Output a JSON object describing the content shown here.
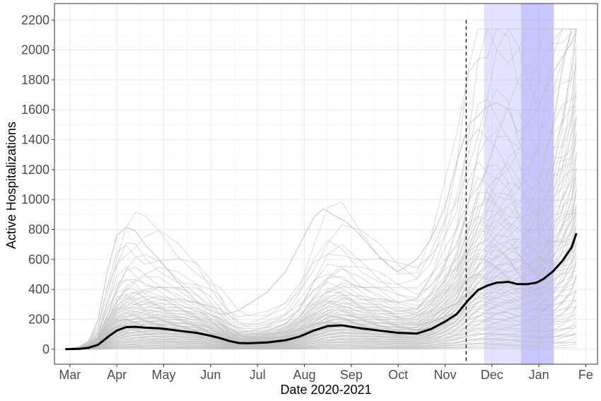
{
  "chart_data": {
    "type": "line",
    "title": "",
    "xlabel": "Date  2020-2021",
    "ylabel": "Active Hospitalizations",
    "x_tick_labels": [
      "Mar",
      "Apr",
      "May",
      "Jun",
      "Jul",
      "Aug",
      "Sep",
      "Oct",
      "Nov",
      "Dec",
      "Jan",
      "Fe"
    ],
    "y_tick_labels": [
      "0",
      "200",
      "400",
      "600",
      "800",
      "1000",
      "1200",
      "1400",
      "1600",
      "1800",
      "2000",
      "2200"
    ],
    "y_ticks": [
      0,
      200,
      400,
      600,
      800,
      1000,
      1200,
      1400,
      1600,
      1800,
      2000,
      2200
    ],
    "ylim": [
      -100,
      2310
    ],
    "x_unit": "months since 2020-03-01",
    "xlim": [
      -0.33,
      11.25
    ],
    "grid": true,
    "legend": "none",
    "vline": {
      "x": 8.45,
      "style": "dashed",
      "top": 2200
    },
    "shaded_regions": [
      {
        "x0": 8.83,
        "x1": 9.62,
        "color": "#ccccff",
        "opacity": 0.55
      },
      {
        "x0": 9.62,
        "x1": 10.32,
        "color": "#9999ff",
        "opacity": 0.55
      }
    ],
    "series": [
      {
        "name": "median",
        "color": "#000000",
        "x": [
          -0.1,
          0.2,
          0.4,
          0.6,
          0.8,
          1.0,
          1.2,
          1.4,
          1.6,
          1.9,
          2.3,
          2.7,
          3.0,
          3.2,
          3.4,
          3.6,
          3.8,
          4.2,
          4.6,
          4.9,
          5.2,
          5.5,
          5.8,
          6.2,
          6.6,
          7.0,
          7.4,
          7.7,
          8.0,
          8.25,
          8.5,
          8.7,
          8.9,
          9.1,
          9.35,
          9.55,
          9.75,
          9.95,
          10.1,
          10.3,
          10.5,
          10.7,
          10.8
        ],
        "y": [
          0,
          3,
          10,
          30,
          80,
          125,
          148,
          150,
          145,
          140,
          125,
          110,
          90,
          75,
          55,
          42,
          40,
          45,
          60,
          85,
          125,
          155,
          160,
          140,
          125,
          110,
          105,
          135,
          185,
          235,
          330,
          395,
          425,
          445,
          450,
          435,
          435,
          445,
          470,
          520,
          590,
          680,
          775
        ]
      }
    ],
    "ensemble": {
      "name": "simulations",
      "color": "#bdbdbd",
      "opacity": 0.55,
      "x": [
        -0.1,
        0.2,
        0.4,
        0.6,
        0.8,
        1.0,
        1.2,
        1.4,
        1.6,
        1.9,
        2.3,
        2.7,
        3.0,
        3.2,
        3.4,
        3.6,
        3.8,
        4.2,
        4.6,
        4.9,
        5.2,
        5.5,
        5.8,
        6.2,
        6.6,
        7.0,
        7.4,
        7.7,
        8.0,
        8.25,
        8.5,
        8.7,
        8.9,
        9.1,
        9.35,
        9.55,
        9.75,
        9.95,
        10.1,
        10.3,
        10.5,
        10.7,
        10.8
      ],
      "scales": [
        0.02,
        0.04,
        0.06,
        0.08,
        0.1,
        0.12,
        0.14,
        0.16,
        0.18,
        0.2,
        0.22,
        0.25,
        0.28,
        0.3,
        0.32,
        0.35,
        0.38,
        0.4,
        0.42,
        0.45,
        0.48,
        0.5,
        0.52,
        0.55,
        0.58,
        0.6,
        0.62,
        0.65,
        0.68,
        0.7,
        0.72,
        0.75,
        0.78,
        0.8,
        0.82,
        0.85,
        0.88,
        0.9,
        0.92,
        0.95,
        0.98,
        1.0,
        1.02,
        1.05,
        1.08,
        1.1,
        1.12,
        1.15,
        1.18,
        1.2,
        1.22,
        1.25,
        1.28,
        1.3,
        1.32,
        1.35,
        1.38,
        1.4,
        1.42,
        1.45,
        1.48,
        1.5,
        1.55,
        1.6,
        1.65,
        1.7,
        1.75,
        1.8,
        1.85,
        1.9,
        1.95,
        2.0,
        2.05,
        2.1,
        2.15,
        2.2,
        2.25,
        2.3,
        2.35,
        2.4,
        2.5,
        2.6,
        2.7,
        2.8,
        2.9,
        3.0,
        3.2,
        3.4,
        3.6,
        3.8,
        4.2,
        4.6,
        5.0,
        5.4
      ],
      "upper_trace": {
        "x": [
          -0.1,
          0.2,
          0.4,
          0.6,
          0.8,
          1.0,
          1.2,
          1.4,
          1.6,
          1.9,
          2.3,
          2.7,
          3.0,
          3.2,
          3.4,
          3.6,
          3.8,
          4.2,
          4.6,
          4.9,
          5.2,
          5.4,
          5.6,
          5.9,
          6.2,
          6.5,
          6.8,
          7.0,
          7.4,
          7.7,
          8.0,
          8.25,
          8.5,
          8.7,
          8.9,
          9.1,
          9.35,
          9.55,
          9.75,
          9.95,
          10.1,
          10.3,
          10.5,
          10.7,
          10.8
        ],
        "y": [
          0,
          10,
          50,
          200,
          520,
          760,
          815,
          790,
          700,
          600,
          450,
          320,
          260,
          235,
          240,
          260,
          300,
          380,
          520,
          700,
          880,
          940,
          900,
          850,
          760,
          650,
          560,
          520,
          600,
          740,
          950,
          1250,
          1500,
          1560,
          1620,
          1650,
          1600,
          1450,
          1500,
          1600,
          1700,
          1850,
          1950,
          2050,
          2130
        ]
      }
    }
  }
}
